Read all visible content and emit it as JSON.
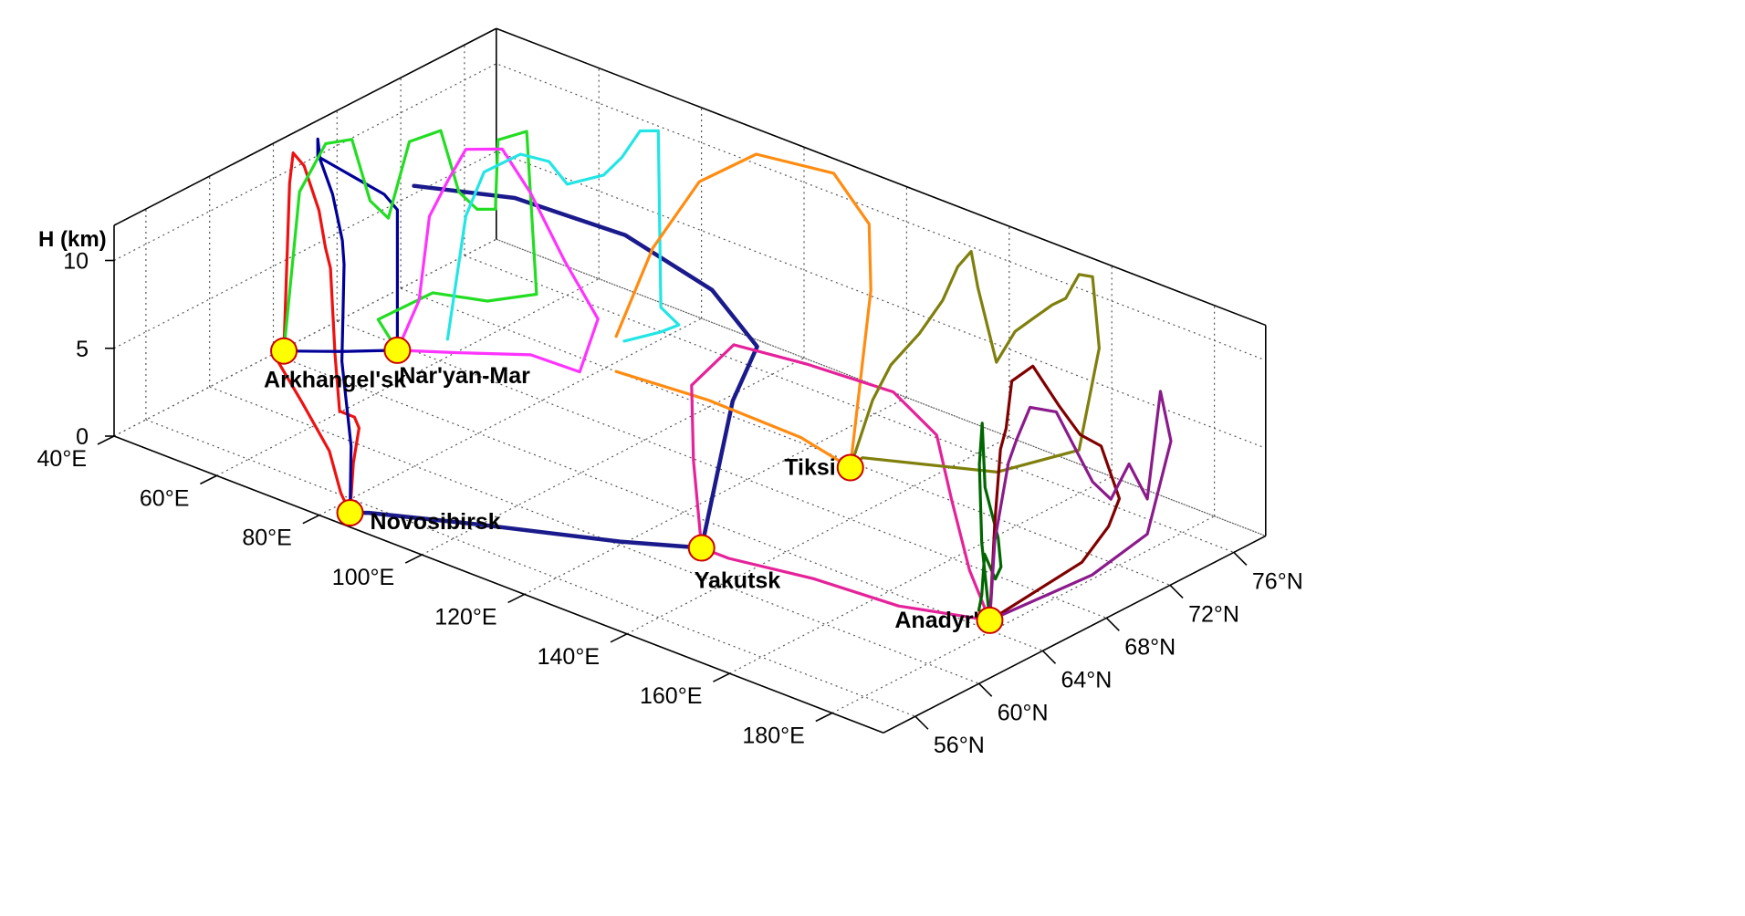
{
  "chart_data": {
    "type": "line",
    "projection": "3d",
    "title": "",
    "axes": {
      "z": {
        "label": "H (km)",
        "range": [
          0,
          12
        ],
        "ticks": [
          0,
          5,
          10
        ]
      },
      "lon": {
        "range": [
          40,
          190
        ],
        "ticks": [
          40,
          60,
          80,
          100,
          120,
          140,
          160,
          180
        ],
        "tick_labels": [
          "40°E",
          "60°E",
          "80°E",
          "100°E",
          "120°E",
          "140°E",
          "160°E",
          "180°E"
        ]
      },
      "lat": {
        "range": [
          54,
          78
        ],
        "ticks": [
          56,
          60,
          64,
          68,
          72,
          76
        ],
        "tick_labels": [
          "56°N",
          "60°N",
          "64°N",
          "68°N",
          "72°N",
          "76°N"
        ]
      }
    },
    "grid": true,
    "cities": [
      {
        "name": "Novosibirsk",
        "lon": 82.9,
        "lat": 55.0
      },
      {
        "name": "Arkhangel'sk",
        "lon": 40.5,
        "lat": 64.5
      },
      {
        "name": "Nar'yan-Mar",
        "lon": 53.0,
        "lat": 67.6
      },
      {
        "name": "Yakutsk",
        "lon": 129.7,
        "lat": 62.0
      },
      {
        "name": "Tiksi",
        "lon": 128.9,
        "lat": 71.6
      },
      {
        "name": "Anadyr'",
        "lon": 177.5,
        "lat": 64.7
      }
    ],
    "series": [
      {
        "color": "#ee1111",
        "points": [
          [
            82.9,
            55,
            0
          ],
          [
            82,
            55.5,
            2.5
          ],
          [
            80,
            56.5,
            3.8
          ],
          [
            76,
            57.5,
            3.5
          ],
          [
            70,
            58.5,
            2.7
          ],
          [
            66,
            59.5,
            5
          ],
          [
            62,
            60.5,
            9
          ],
          [
            57,
            61.8,
            9
          ],
          [
            52,
            63,
            10
          ],
          [
            46,
            64,
            11.4
          ],
          [
            42,
            64.6,
            11.4
          ],
          [
            41,
            64.7,
            9.5
          ],
          [
            40.5,
            64.5,
            0
          ],
          [
            42,
            64,
            0
          ],
          [
            44,
            63,
            0.5
          ],
          [
            55,
            61,
            0.3
          ],
          [
            68,
            58.5,
            0.2
          ],
          [
            78,
            56,
            0.1
          ],
          [
            82.9,
            55,
            0
          ]
        ]
      },
      {
        "color": "#000099",
        "points": [
          [
            82.9,
            55,
            0
          ],
          [
            80,
            56,
            3
          ],
          [
            72,
            58,
            6
          ],
          [
            66,
            60,
            7
          ],
          [
            60,
            62,
            8.3
          ],
          [
            55,
            63.5,
            8.4
          ],
          [
            50,
            64.5,
            10
          ],
          [
            46,
            65,
            11.3
          ],
          [
            44,
            65.5,
            12
          ],
          [
            44,
            65.5,
            11
          ],
          [
            48,
            66.3,
            10
          ],
          [
            52,
            67.1,
            9
          ],
          [
            53,
            67.6,
            8
          ],
          [
            53,
            67.6,
            0
          ],
          [
            47,
            66,
            0
          ],
          [
            40.5,
            64.5,
            0
          ]
        ]
      },
      {
        "color": "#000099",
        "lineWidth": 1.4,
        "points": [
          [
            40.5,
            64.5,
            0
          ],
          [
            53,
            67.6,
            0
          ]
        ]
      },
      {
        "color": "#1a1a8c",
        "lineWidth": 4.5,
        "points": [
          [
            55,
            68,
            9.4
          ],
          [
            70,
            69.5,
            9.7
          ],
          [
            90,
            70,
            9.6
          ],
          [
            110,
            69,
            9.2
          ],
          [
            125,
            67,
            8.6
          ],
          [
            128,
            64.5,
            7
          ],
          [
            129.7,
            62,
            0
          ],
          [
            120,
            60,
            0.2
          ],
          [
            100,
            57.5,
            0.1
          ],
          [
            85,
            55.5,
            0
          ],
          [
            82.9,
            55,
            0
          ]
        ]
      },
      {
        "color": "#22dd22",
        "points": [
          [
            40.5,
            64.5,
            0
          ],
          [
            42,
            65,
            9
          ],
          [
            44,
            66,
            11.5
          ],
          [
            46,
            67,
            11.5
          ],
          [
            48,
            67.5,
            8
          ],
          [
            50,
            68,
            7
          ],
          [
            51,
            69,
            11
          ],
          [
            54,
            70,
            11.5
          ],
          [
            56,
            70.5,
            8
          ],
          [
            58,
            71,
            7
          ],
          [
            60,
            71.5,
            7
          ],
          [
            60.5,
            71.5,
            11
          ],
          [
            63,
            72.5,
            11.3
          ],
          [
            64,
            72.8,
            2
          ],
          [
            60,
            71,
            2
          ],
          [
            54,
            69.5,
            2.5
          ],
          [
            48,
            68,
            1
          ],
          [
            53,
            67.6,
            0
          ]
        ]
      },
      {
        "color": "#ff33ff",
        "points": [
          [
            53,
            67.6,
            0
          ],
          [
            60,
            69,
            0
          ],
          [
            70,
            70.5,
            0.3
          ],
          [
            78,
            71,
            0
          ],
          [
            80,
            71.5,
            3
          ],
          [
            75,
            71,
            6
          ],
          [
            70,
            70.5,
            9.5
          ],
          [
            66,
            70,
            11.8
          ],
          [
            62,
            69,
            11.8
          ],
          [
            60,
            68.5,
            10
          ],
          [
            58,
            68,
            8
          ],
          [
            56,
            68,
            3
          ],
          [
            53,
            67.6,
            0
          ]
        ]
      },
      {
        "color": "#22e5e5",
        "points": [
          [
            60,
            68.5,
            1
          ],
          [
            62,
            69,
            8
          ],
          [
            64,
            69.5,
            10.5
          ],
          [
            68,
            70.5,
            11.5
          ],
          [
            72,
            71,
            11.3
          ],
          [
            74,
            71.5,
            10
          ],
          [
            78,
            72.5,
            10.5
          ],
          [
            80,
            73,
            11.5
          ],
          [
            82,
            73.5,
            13
          ],
          [
            84,
            74,
            13
          ],
          [
            84.5,
            74,
            3
          ],
          [
            88,
            74,
            2.4
          ],
          [
            86,
            73.5,
            2
          ],
          [
            82,
            72.5,
            1.5
          ]
        ]
      },
      {
        "color": "#ff8c11",
        "points": [
          [
            82,
            72,
            2
          ],
          [
            86,
            73,
            7
          ],
          [
            92,
            74,
            11
          ],
          [
            100,
            75,
            13
          ],
          [
            112,
            76,
            12.8
          ],
          [
            122,
            75,
            11.5
          ],
          [
            127,
            73.5,
            9
          ],
          [
            128.9,
            71.6,
            0
          ],
          [
            118,
            72,
            0.3
          ],
          [
            100,
            72,
            0.4
          ],
          [
            82,
            72,
            0
          ]
        ]
      },
      {
        "color": "#e5229a",
        "points": [
          [
            129.7,
            62,
            0
          ],
          [
            125,
            63,
            4
          ],
          [
            120,
            64.5,
            7
          ],
          [
            122,
            66.5,
            8.6
          ],
          [
            135,
            67,
            8.7
          ],
          [
            150,
            67.5,
            8.6
          ],
          [
            160,
            67,
            7.5
          ],
          [
            166,
            66,
            5
          ],
          [
            172,
            65.2,
            2
          ],
          [
            177.5,
            64.7,
            0
          ],
          [
            165,
            63,
            0.2
          ],
          [
            150,
            62.5,
            0.3
          ],
          [
            135,
            62,
            0
          ],
          [
            129.7,
            62,
            0
          ]
        ]
      },
      {
        "color": "#7f7f0d",
        "points": [
          [
            128.9,
            71.6,
            0
          ],
          [
            132,
            72,
            4
          ],
          [
            134,
            72.5,
            6
          ],
          [
            138,
            73,
            8
          ],
          [
            141,
            73.5,
            10
          ],
          [
            143,
            73.8,
            12
          ],
          [
            145,
            74,
            13
          ],
          [
            146,
            74.1,
            11
          ],
          [
            149,
            74.3,
            7
          ],
          [
            152,
            74.5,
            9
          ],
          [
            155,
            74.7,
            10
          ],
          [
            158,
            74.9,
            11
          ],
          [
            160,
            75.1,
            11.5
          ],
          [
            162,
            75.3,
            13
          ],
          [
            164,
            75.5,
            13
          ],
          [
            165,
            75.6,
            9
          ],
          [
            162,
            75.3,
            3
          ],
          [
            150,
            74,
            1
          ],
          [
            130,
            72,
            0.5
          ],
          [
            128.9,
            71.6,
            0
          ]
        ]
      },
      {
        "color": "#006600",
        "points": [
          [
            177.5,
            64.7,
            0
          ],
          [
            175,
            65,
            4
          ],
          [
            173,
            65.5,
            8
          ],
          [
            172,
            66,
            10
          ],
          [
            171,
            66.5,
            6
          ],
          [
            172,
            67,
            3
          ],
          [
            171,
            67.5,
            1
          ],
          [
            173,
            66.5,
            1
          ],
          [
            174,
            65.5,
            3
          ],
          [
            175,
            65,
            1
          ],
          [
            176,
            64.5,
            0.5
          ],
          [
            177.5,
            64.7,
            0
          ]
        ]
      },
      {
        "color": "#800000",
        "points": [
          [
            177.5,
            64.7,
            0
          ],
          [
            176,
            65.5,
            5
          ],
          [
            174,
            66.5,
            8.5
          ],
          [
            172,
            67.5,
            9
          ],
          [
            170,
            68.5,
            11
          ],
          [
            171,
            69.5,
            11.5
          ],
          [
            173,
            70.5,
            9
          ],
          [
            174,
            71.5,
            7
          ],
          [
            175,
            72.5,
            6
          ],
          [
            177,
            73,
            3
          ],
          [
            178,
            72,
            2
          ],
          [
            179,
            70,
            1
          ],
          [
            177.5,
            64.7,
            0
          ]
        ]
      },
      {
        "color": "#8b1a8b",
        "points": [
          [
            177.5,
            64.7,
            0
          ],
          [
            176,
            65.5,
            4
          ],
          [
            174,
            67,
            7.5
          ],
          [
            172.5,
            68,
            8.2
          ],
          [
            172,
            69,
            9.5
          ],
          [
            174,
            70,
            9
          ],
          [
            176,
            70.5,
            7
          ],
          [
            178,
            71,
            5
          ],
          [
            180,
            71.5,
            4
          ],
          [
            182,
            72,
            6
          ],
          [
            184,
            72.5,
            4
          ],
          [
            185,
            73,
            10
          ],
          [
            185.5,
            73.5,
            7
          ],
          [
            184,
            72.5,
            2
          ],
          [
            181,
            70,
            0.5
          ],
          [
            177.5,
            64.7,
            0
          ]
        ]
      }
    ]
  }
}
